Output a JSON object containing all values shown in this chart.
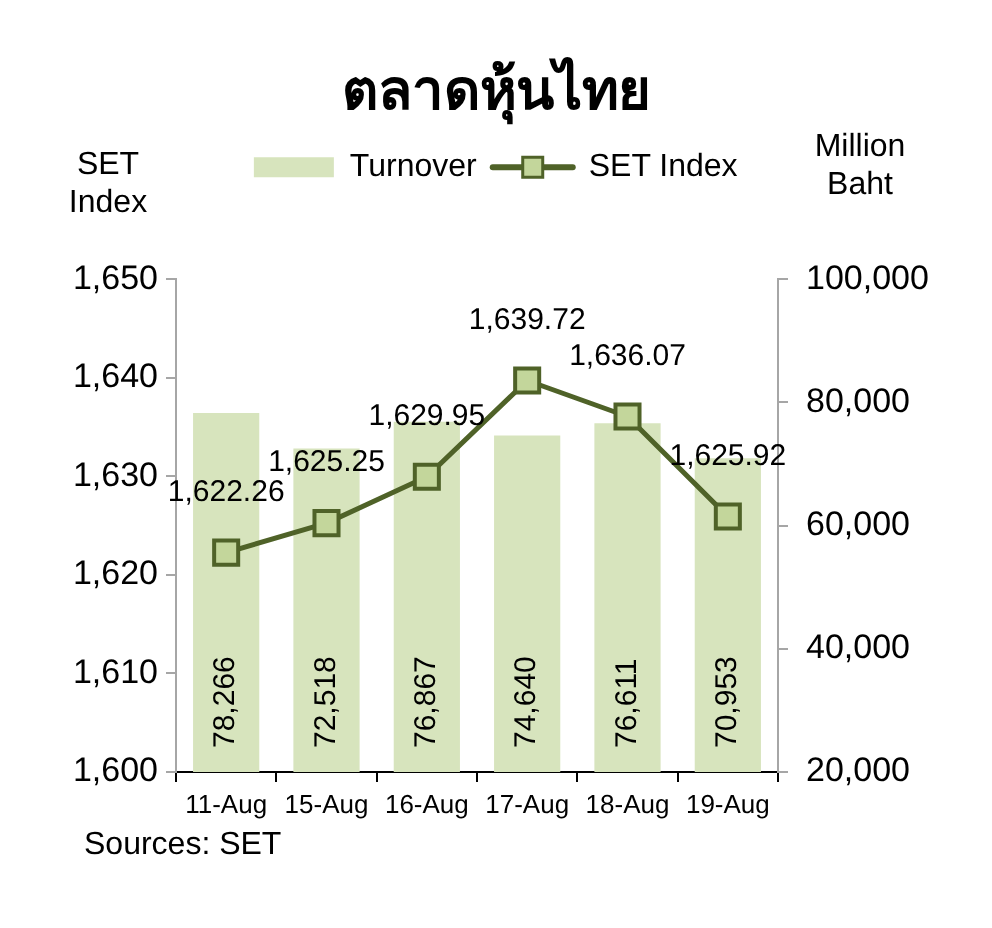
{
  "chart_data": {
    "type": "bar",
    "title": "ตลาดหุ้นไทย",
    "ylabel": "SET Index",
    "y2label": "Million Baht",
    "categories": [
      "11-Aug",
      "15-Aug",
      "16-Aug",
      "17-Aug",
      "18-Aug",
      "19-Aug"
    ],
    "series": [
      {
        "name": "Turnover",
        "axis": "y2",
        "color": "#d7e4bd",
        "values": [
          78266,
          72518,
          76867,
          74640,
          76611,
          70953
        ],
        "value_labels": [
          "78,266",
          "72,518",
          "76,867",
          "74,640",
          "76,611",
          "70,953"
        ]
      },
      {
        "name": "SET Index",
        "type": "line",
        "axis": "y",
        "color": "#4f6228",
        "values": [
          1622.26,
          1625.25,
          1629.95,
          1639.72,
          1636.07,
          1625.92
        ],
        "value_labels": [
          "1,622.26",
          "1,625.25",
          "1,629.95",
          "1,639.72",
          "1,636.07",
          "1,625.92"
        ]
      }
    ],
    "ylim": [
      1600,
      1650
    ],
    "yticks": [
      {
        "value": 1600,
        "label": "1,600"
      },
      {
        "value": 1610,
        "label": "1,610"
      },
      {
        "value": 1620,
        "label": "1,620"
      },
      {
        "value": 1630,
        "label": "1,630"
      },
      {
        "value": 1640,
        "label": "1,640"
      },
      {
        "value": 1650,
        "label": "1,650"
      }
    ],
    "y2lim": [
      20000,
      100000
    ],
    "y2ticks": [
      {
        "value": 20000,
        "label": "20,000"
      },
      {
        "value": 40000,
        "label": "40,000"
      },
      {
        "value": 60000,
        "label": "60,000"
      },
      {
        "value": 80000,
        "label": "80,000"
      },
      {
        "value": 100000,
        "label": "100,000"
      }
    ],
    "marker": "square",
    "legend": "top",
    "grid": false,
    "annotations": [
      "Sources: SET"
    ]
  }
}
